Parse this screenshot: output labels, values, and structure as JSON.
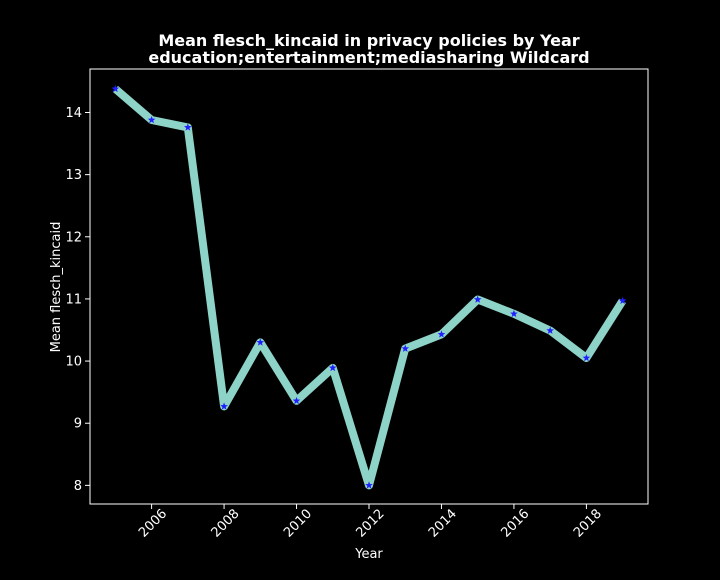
{
  "chart_data": {
    "type": "line",
    "title": "Mean flesch_kincaid in privacy policies by Year",
    "subtitle": "education;entertainment;mediasharing Wildcard",
    "xlabel": "Year",
    "ylabel": "Mean flesch_kincaid",
    "x": [
      2005,
      2006,
      2007,
      2008,
      2009,
      2010,
      2011,
      2012,
      2013,
      2014,
      2015,
      2016,
      2017,
      2018,
      2019
    ],
    "series": [
      {
        "values": [
          14.38,
          13.88,
          13.76,
          9.27,
          10.3,
          9.36,
          9.89,
          8.0,
          10.2,
          10.43,
          10.99,
          10.76,
          10.49,
          10.05,
          10.97
        ]
      }
    ],
    "xticks": [
      2006,
      2008,
      2010,
      2012,
      2014,
      2016,
      2018
    ],
    "yticks": [
      8,
      9,
      10,
      11,
      12,
      13,
      14
    ],
    "xlim": [
      2004.3,
      2019.7
    ],
    "ylim": [
      7.7,
      14.7
    ],
    "grid": false,
    "colors": {
      "background": "#000000",
      "line": "#8dd3c7",
      "marker": "#1f1fff",
      "text": "#ffffff",
      "axes": "#ffffff"
    }
  }
}
